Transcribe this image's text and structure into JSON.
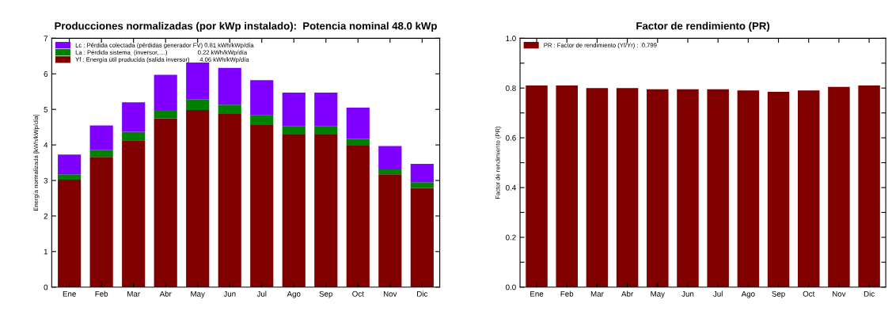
{
  "chart_data": [
    {
      "type": "bar",
      "title": "Producciones normalizadas (por kWp instalado):  Potencia nominal 48.0 kWp",
      "ylabel": "Energía normalizada [kWh/kWp/día]",
      "categories": [
        "Ene",
        "Feb",
        "Mar",
        "Abr",
        "May",
        "Jun",
        "Jul",
        "Ago",
        "Sep",
        "Oct",
        "Nov",
        "Dic"
      ],
      "stacked": true,
      "legend": "top left",
      "grid": false,
      "ylim": [
        0,
        7
      ],
      "yticks": [
        0,
        1,
        2,
        3,
        4,
        5,
        6,
        7
      ],
      "series": [
        {
          "name": "Yf : Energía útil producida (salida inversor)      4.06 kWh/kWp/día",
          "color": "#800000",
          "values": [
            3.02,
            3.66,
            4.13,
            4.75,
            4.98,
            4.87,
            4.56,
            4.29,
            4.29,
            3.98,
            3.17,
            2.79
          ]
        },
        {
          "name": "La : Pérdida sistema  (inversor, ...)                  0.22 kWh/kWp/día",
          "color": "#008000",
          "values": [
            0.15,
            0.2,
            0.24,
            0.23,
            0.31,
            0.26,
            0.27,
            0.23,
            0.23,
            0.19,
            0.14,
            0.16
          ]
        },
        {
          "name": "Lc : Pérdida colectada (pérdidas generador FV) 0.81 kWh/kWp/día",
          "color": "#8000ff",
          "values": [
            0.56,
            0.69,
            0.83,
            0.99,
            1.03,
            1.04,
            0.99,
            0.95,
            0.95,
            0.88,
            0.66,
            0.52
          ]
        }
      ]
    },
    {
      "type": "bar",
      "title": "Factor de rendimiento (PR)",
      "ylabel": "Factor de rendimiento (PR)",
      "categories": [
        "Ene",
        "Feb",
        "Mar",
        "Abr",
        "May",
        "Jun",
        "Jul",
        "Ago",
        "Sep",
        "Oct",
        "Nov",
        "Dic"
      ],
      "legend": "top left",
      "grid": false,
      "ylim": [
        0,
        1
      ],
      "yticks": [
        {
          "value": 0,
          "label": "0.0"
        },
        {
          "value": 0.1,
          "label": null
        },
        0.2,
        {
          "value": 0.3,
          "label": null
        },
        0.4,
        {
          "value": 0.5,
          "label": null
        },
        0.6,
        {
          "value": 0.7,
          "label": null
        },
        0.8,
        {
          "value": 0.9,
          "label": null
        },
        {
          "value": 1,
          "label": "1.0"
        }
      ],
      "series": [
        {
          "name": "PR : Factor de rendimiento (Yf/Yr) :  0.799",
          "color": "#800000",
          "values": [
            0.81,
            0.81,
            0.8,
            0.8,
            0.795,
            0.795,
            0.795,
            0.79,
            0.785,
            0.79,
            0.805,
            0.81
          ]
        }
      ]
    }
  ]
}
